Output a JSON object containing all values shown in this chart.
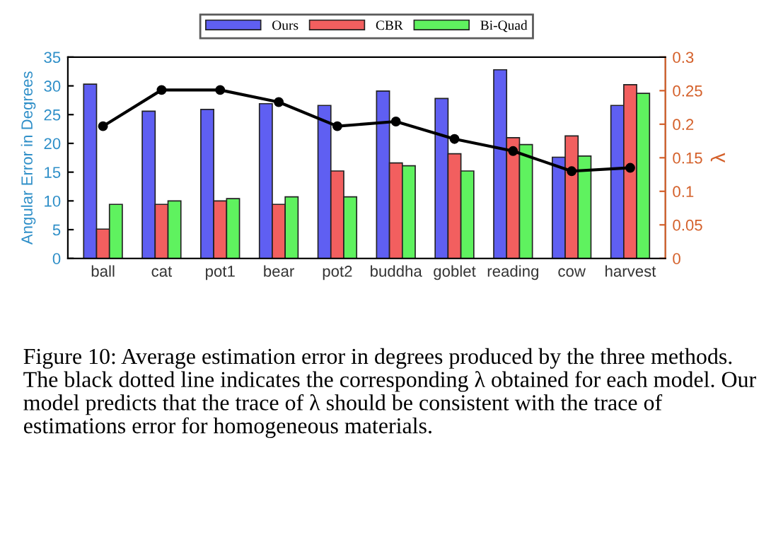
{
  "chart_data": {
    "type": "bar",
    "categories": [
      "ball",
      "cat",
      "pot1",
      "bear",
      "pot2",
      "buddha",
      "goblet",
      "reading",
      "cow",
      "harvest"
    ],
    "series": [
      {
        "name": "Ours",
        "color": "#5f5ff2",
        "values": [
          30.3,
          25.6,
          25.9,
          26.9,
          26.6,
          29.1,
          27.8,
          32.8,
          17.6,
          26.6
        ]
      },
      {
        "name": "CBR",
        "color": "#f25f5f",
        "values": [
          5.1,
          9.4,
          10.0,
          9.4,
          15.2,
          16.6,
          18.2,
          21.0,
          21.3,
          30.2
        ]
      },
      {
        "name": "Bi-Quad",
        "color": "#5ff25f",
        "values": [
          9.4,
          10.0,
          10.4,
          10.7,
          10.7,
          16.1,
          15.2,
          19.8,
          17.8,
          28.7
        ]
      },
      {
        "type": "line",
        "axis": "y2",
        "color": "#000000",
        "marker": "circle",
        "line_style": "solid",
        "values": [
          0.197,
          0.251,
          0.251,
          0.233,
          0.197,
          0.204,
          0.178,
          0.16,
          0.13,
          0.135
        ]
      }
    ],
    "ylabel": "Angular Error in Degrees",
    "y2label": "λ",
    "ylim": [
      0,
      35
    ],
    "yticks": [
      0,
      5,
      10,
      15,
      20,
      25,
      30,
      35
    ],
    "y2lim": [
      0,
      0.3
    ],
    "y2ticks": [
      0,
      0.05,
      0.1,
      0.15,
      0.2,
      0.25,
      0.3
    ],
    "legend": "top",
    "grid": false,
    "annotations": [
      "Figure 10: Average estimation error in degrees produced by the three methods. The black dotted line indicates the corresponding λ obtained for each model. Our model predicts that the trace of λ should be consistent with the trace of estimations error for homogeneous materials."
    ]
  }
}
